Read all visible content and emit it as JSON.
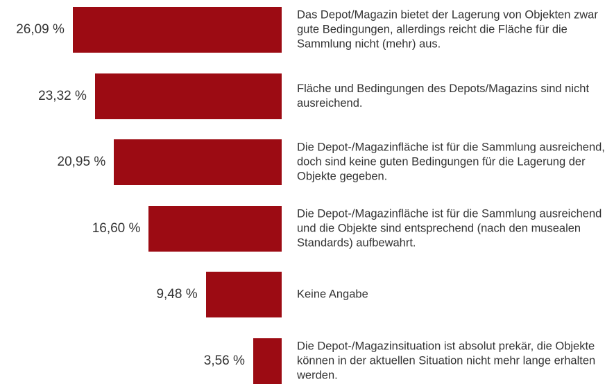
{
  "chart_data": {
    "type": "bar",
    "orientation": "horizontal",
    "color": "#9c0b13",
    "categories": [
      "Das Depot/Magazin bietet der Lagerung von Objekten zwar gute Bedingungen, allerdings reicht die Fläche für die Sammlung nicht (mehr) aus.",
      "Fläche und Bedingungen des Depots/Magazins sind nicht ausreichend.",
      "Die Depot-/Magazinfläche ist für die Sammlung ausreichend, doch sind keine guten Bedingungen für die Lagerung der Objekte gegeben.",
      "Die Depot-/Magazinfläche ist für die Sammlung ausreichend und die Objekte sind entsprechend (nach den musealen Standards) aufbewahrt.",
      "Keine Angabe",
      "Die Depot-/Magazinsituation ist absolut prekär, die Objekte können in der aktuellen Situation nicht mehr lange erhalten werden."
    ],
    "values": [
      26.09,
      23.32,
      20.95,
      16.6,
      9.48,
      3.56
    ],
    "value_labels": [
      "26,09 %",
      "23,32 %",
      "20,95 %",
      "16,60 %",
      "9,48 %",
      "3,56 %"
    ]
  }
}
